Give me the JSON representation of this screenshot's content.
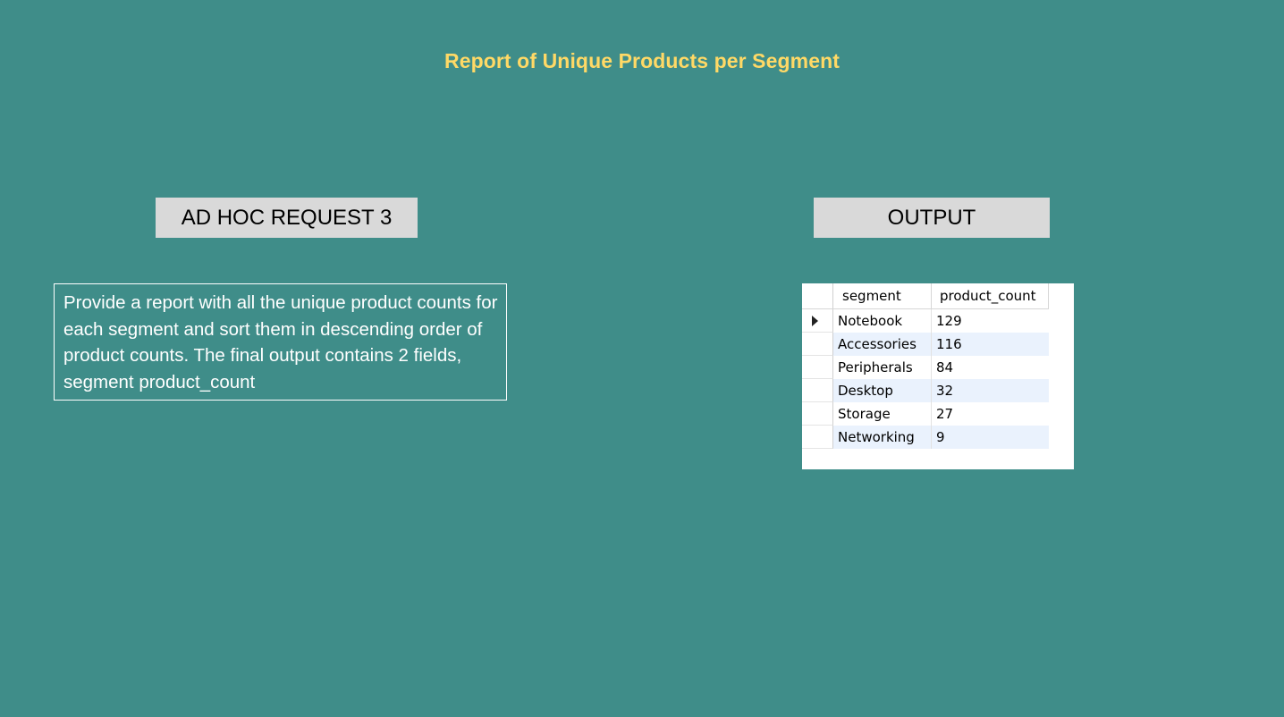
{
  "title": "Report of Unique Products per Segment",
  "request_label": "AD HOC REQUEST 3",
  "output_label": "OUTPUT",
  "description": "Provide a report with all the unique product counts for each segment and sort them in descending order of product counts. The final output contains 2 fields, segment product_count",
  "colors": {
    "background": "#3f8d89",
    "title": "#ffd966",
    "label_box": "#d9d9d9"
  },
  "result_grid": {
    "columns": [
      "segment",
      "product_count"
    ],
    "current_row_icon": "row-pointer-icon",
    "rows": [
      {
        "segment": "Notebook",
        "product_count": "129"
      },
      {
        "segment": "Accessories",
        "product_count": "116"
      },
      {
        "segment": "Peripherals",
        "product_count": "84"
      },
      {
        "segment": "Desktop",
        "product_count": "32"
      },
      {
        "segment": "Storage",
        "product_count": "27"
      },
      {
        "segment": "Networking",
        "product_count": "9"
      }
    ]
  }
}
